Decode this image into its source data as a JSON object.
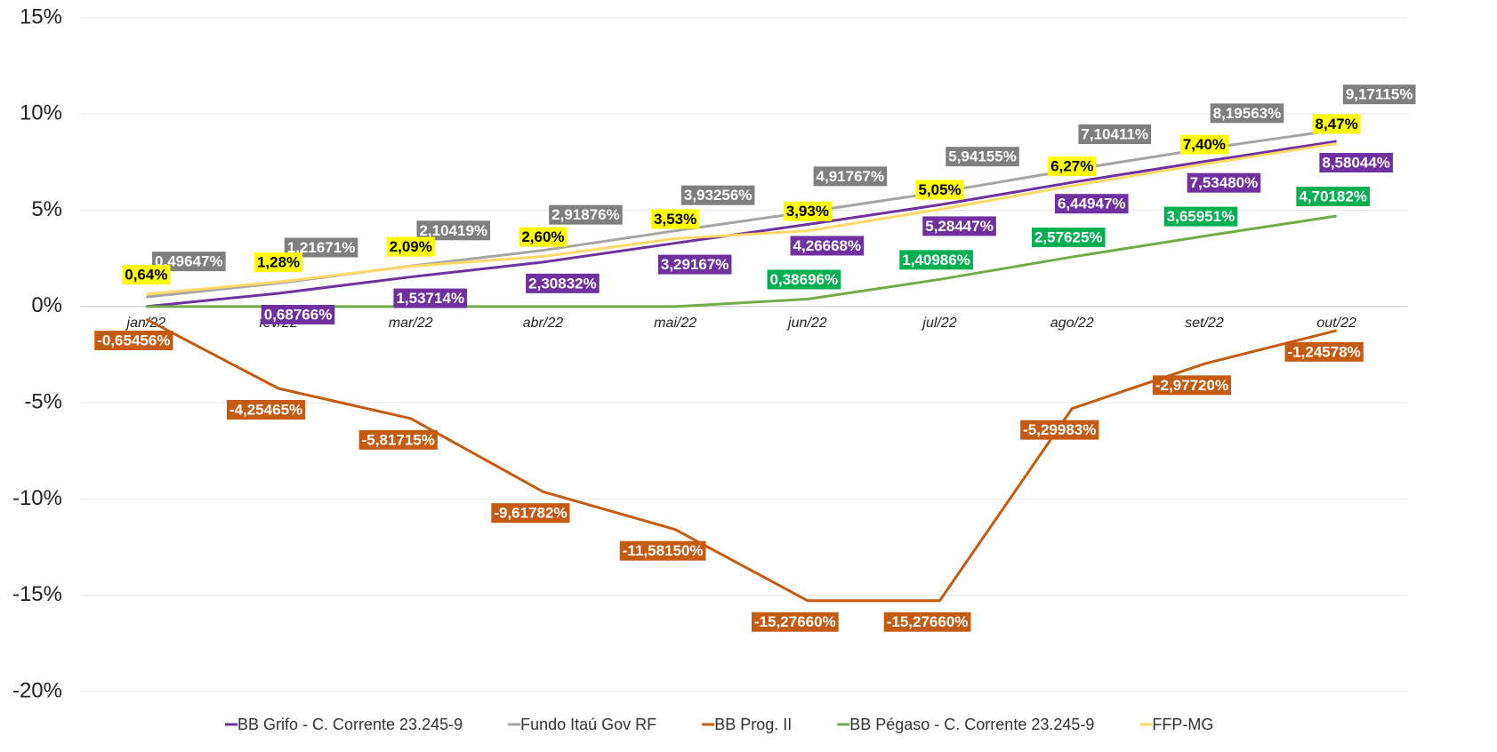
{
  "chart_data": {
    "type": "line",
    "categories": [
      "jan/22",
      "fev/22",
      "mar/22",
      "abr/22",
      "mai/22",
      "jun/22",
      "jul/22",
      "ago/22",
      "set/22",
      "out/22"
    ],
    "ylim": [
      -20,
      15
    ],
    "yticks": [
      {
        "value": -20,
        "label": "-20%"
      },
      {
        "value": -15,
        "label": "-15%"
      },
      {
        "value": -10,
        "label": "-10%"
      },
      {
        "value": -5,
        "label": "-5%"
      },
      {
        "value": 0,
        "label": "0%"
      },
      {
        "value": 5,
        "label": "5%"
      },
      {
        "value": 10,
        "label": "10%"
      },
      {
        "value": 15,
        "label": "15%"
      }
    ],
    "grid": true,
    "legend": "bottom",
    "series": [
      {
        "name": "BB Grifo - C. Corrente 23.245-9",
        "color": "#7030a0",
        "label_color": "#7030a0",
        "label_text_color": "#ffffff",
        "values": [
          0,
          0.68766,
          1.53714,
          2.30832,
          3.29167,
          4.26668,
          5.28447,
          6.44947,
          7.5348,
          8.58044
        ],
        "value_labels": [
          null,
          "0,68766%",
          "1,53714%",
          "2,30832%",
          "3,29167%",
          "4,26668%",
          "5,28447%",
          "6,44947%",
          "7,53480%",
          "8,58044%"
        ]
      },
      {
        "name": "Fundo Itaú Gov RF",
        "color": "#a5a5a5",
        "label_color": "#7f7f7f",
        "label_text_color": "#ffffff",
        "values": [
          0.49647,
          1.21671,
          2.10419,
          2.91876,
          3.93256,
          4.91767,
          5.94155,
          7.10411,
          8.19563,
          9.17115
        ],
        "value_labels": [
          "0,49647%",
          "1,21671%",
          "2,10419%",
          "2,91876%",
          "3,93256%",
          "4,91767%",
          "5,94155%",
          "7,10411%",
          "8,19563%",
          "9,17115%"
        ]
      },
      {
        "name": "BB Prog. II",
        "color": "#c55a11",
        "label_color": "#c55a11",
        "label_text_color": "#ffffff",
        "values": [
          -0.65456,
          -4.25465,
          -5.81715,
          -9.61782,
          -11.5815,
          -15.2766,
          -15.2766,
          -5.29983,
          -2.9772,
          -1.24578
        ],
        "value_labels": [
          "-0,65456%",
          "-4,25465%",
          "-5,81715%",
          "-9,61782%",
          "-11,58150%",
          "-15,27660%",
          "-15,27660%",
          "-5,29983%",
          "-2,97720%",
          "-1,24578%"
        ]
      },
      {
        "name": "BB Pégaso - C. Corrente 23.245-9",
        "color": "#70ad47",
        "label_color": "#00b050",
        "label_text_color": "#ffffff",
        "values": [
          0,
          0,
          0,
          0,
          0,
          0.38696,
          1.40986,
          2.57625,
          3.65951,
          4.70182
        ],
        "value_labels": [
          null,
          null,
          null,
          null,
          null,
          "0,38696%",
          "1,40986%",
          "2,57625%",
          "3,65951%",
          "4,70182%"
        ]
      },
      {
        "name": "FFP-MG",
        "color": "#ffd966",
        "label_color": "#ffff00",
        "label_text_color": "#000000",
        "values": [
          0.64,
          1.28,
          2.09,
          2.6,
          3.53,
          3.93,
          5.05,
          6.27,
          7.4,
          8.47
        ],
        "value_labels": [
          "0,64%",
          "1,28%",
          "2,09%",
          "2,60%",
          "3,53%",
          "3,93%",
          "5,05%",
          "6,27%",
          "7,40%",
          "8,47%"
        ]
      }
    ]
  }
}
